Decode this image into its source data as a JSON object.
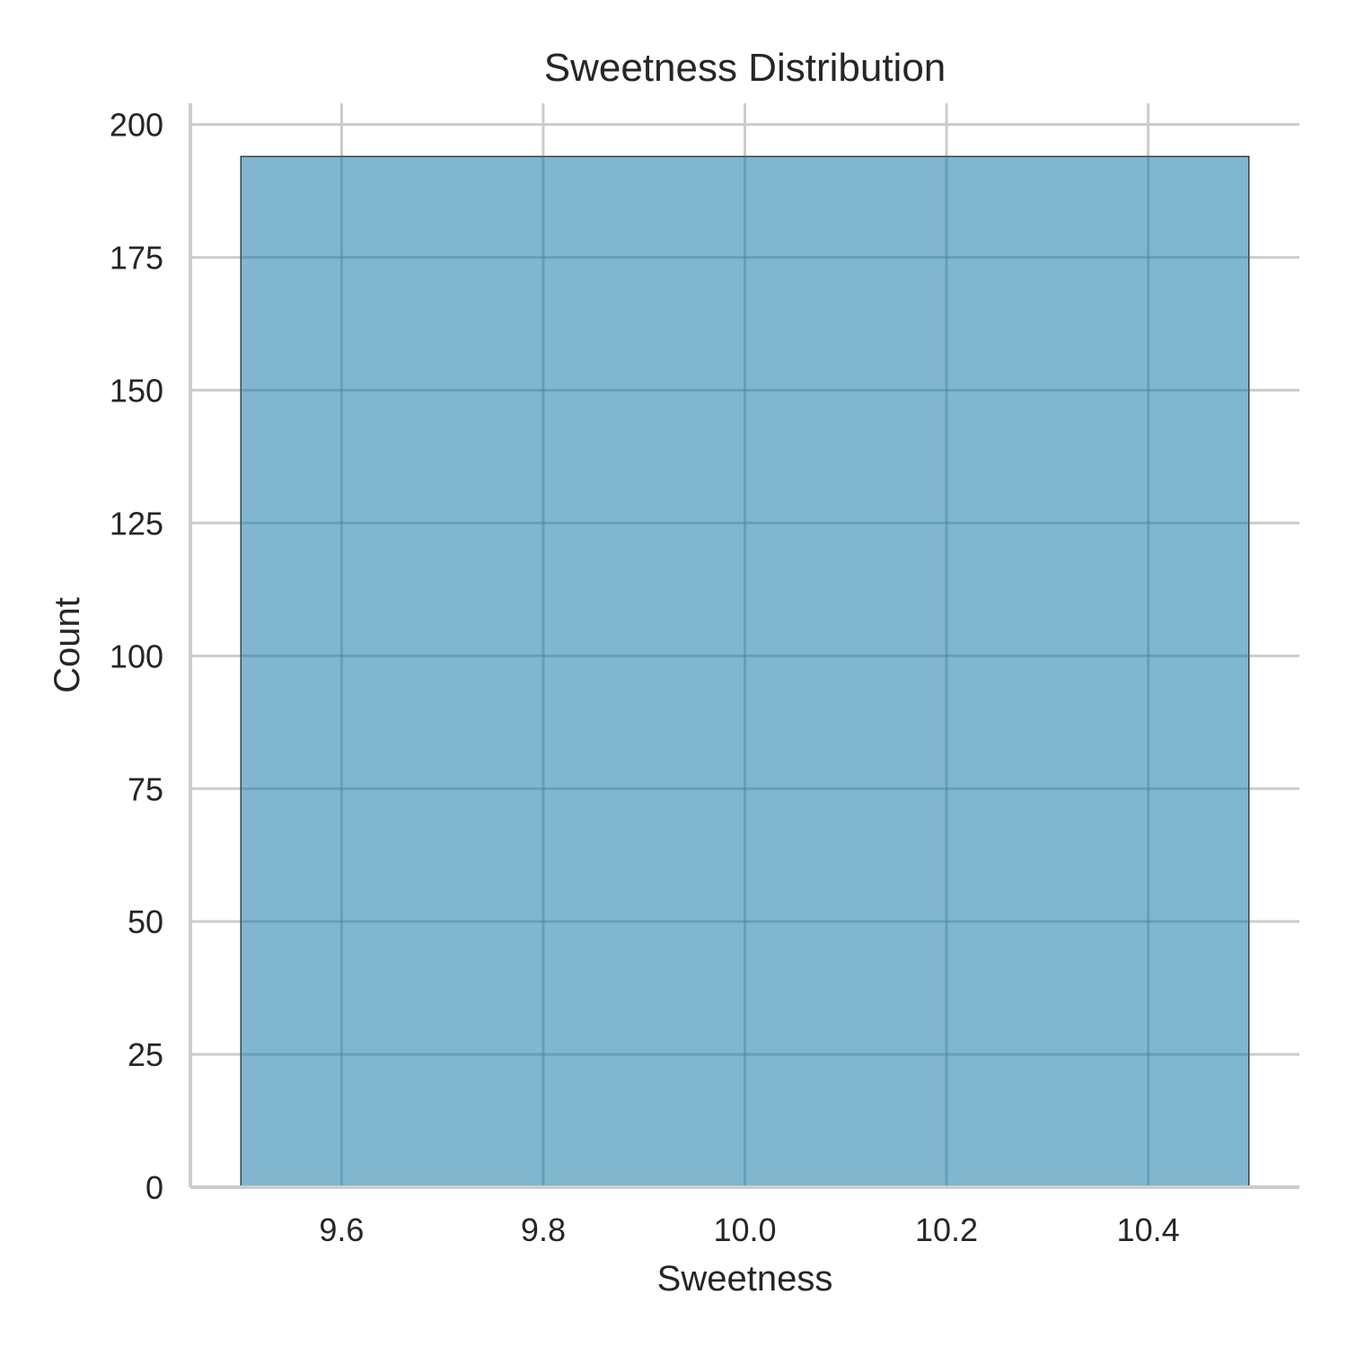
{
  "chart_data": {
    "type": "bar",
    "title": "Sweetness Distribution",
    "xlabel": "Sweetness",
    "ylabel": "Count",
    "xlim": [
      9.45,
      10.55
    ],
    "ylim": [
      0,
      204
    ],
    "x_ticks": [
      "9.6",
      "9.8",
      "10.0",
      "10.2",
      "10.4"
    ],
    "y_ticks": [
      "0",
      "25",
      "50",
      "75",
      "100",
      "125",
      "150",
      "175",
      "200"
    ],
    "bins": [
      {
        "x_start": 9.5,
        "x_end": 10.5,
        "count": 194
      }
    ],
    "grid": true,
    "colors": {
      "bar_fill": "#80b6ce",
      "bar_edge": "#000000",
      "grid": "#cccccc",
      "axis": "#cccccc",
      "text": "#262626"
    }
  }
}
